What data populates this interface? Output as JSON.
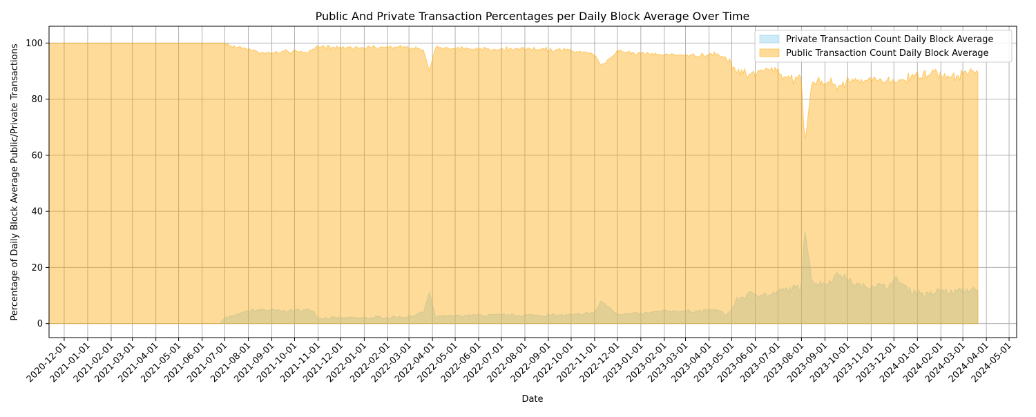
{
  "chart_data": {
    "type": "area",
    "title": "Public And Private Transaction Percentages per Daily Block Average Over Time",
    "xlabel": "Date",
    "ylabel": "Percentage of Daily Block Average Public/Private Transactions",
    "x_ticks": [
      "2020-12-01",
      "2021-01-01",
      "2021-02-01",
      "2021-03-01",
      "2021-04-01",
      "2021-05-01",
      "2021-06-01",
      "2021-07-01",
      "2021-08-01",
      "2021-09-01",
      "2021-10-01",
      "2021-11-01",
      "2021-12-01",
      "2022-01-01",
      "2022-02-01",
      "2022-03-01",
      "2022-04-01",
      "2022-05-01",
      "2022-06-01",
      "2022-07-01",
      "2022-08-01",
      "2022-09-01",
      "2022-10-01",
      "2022-11-01",
      "2022-12-01",
      "2023-01-01",
      "2023-02-01",
      "2023-03-01",
      "2023-04-01",
      "2023-05-01",
      "2023-06-01",
      "2023-07-01",
      "2023-08-01",
      "2023-09-01",
      "2023-10-01",
      "2023-11-01",
      "2023-12-01",
      "2024-01-01",
      "2024-02-01",
      "2024-03-01",
      "2024-04-01",
      "2024-05-01"
    ],
    "y_ticks": [
      0,
      20,
      40,
      60,
      80,
      100
    ],
    "ylim": [
      -5,
      106
    ],
    "xlim": [
      "2020-11-11",
      "2024-05-11"
    ],
    "grid": true,
    "legend_position": "top-right",
    "colors": {
      "private": "#87ceeb",
      "public": "#ffa500"
    },
    "x": [
      "2020-11-11",
      "2021-03-01",
      "2021-06-25",
      "2021-06-29",
      "2021-07-10",
      "2021-08-01",
      "2021-08-20",
      "2021-09-15",
      "2021-10-25",
      "2021-11-01",
      "2022-01-01",
      "2022-03-01",
      "2022-03-20",
      "2022-03-28",
      "2022-04-05",
      "2022-06-01",
      "2022-08-01",
      "2022-10-01",
      "2022-11-01",
      "2022-11-10",
      "2022-12-01",
      "2023-01-01",
      "2023-02-01",
      "2023-03-01",
      "2023-03-20",
      "2023-04-10",
      "2023-04-25",
      "2023-05-10",
      "2023-06-01",
      "2023-06-20",
      "2023-07-10",
      "2023-08-01",
      "2023-08-05",
      "2023-08-15",
      "2023-09-01",
      "2023-09-20",
      "2023-10-10",
      "2023-10-25",
      "2023-11-05",
      "2023-11-20",
      "2023-12-05",
      "2023-12-20",
      "2024-01-05",
      "2024-01-15",
      "2024-02-01",
      "2024-02-15",
      "2024-03-01",
      "2024-03-15",
      "2024-03-22"
    ],
    "series": [
      {
        "name": "Private Transaction Count Daily Block Average",
        "values": [
          0,
          0,
          0,
          2,
          2.5,
          4.5,
          5,
          4.5,
          5,
          2,
          2,
          2.5,
          4,
          11,
          2.5,
          3,
          3,
          3,
          4,
          8,
          3.5,
          3.5,
          4.5,
          4.5,
          4.5,
          5,
          3,
          9,
          11,
          10,
          12,
          13,
          35,
          15,
          14,
          18,
          14,
          13,
          14,
          13,
          16,
          12,
          11,
          10,
          12,
          11,
          12,
          12,
          11
        ]
      },
      {
        "name": "Public Transaction Count Daily Block Average",
        "values": [
          100,
          100,
          100,
          100,
          99,
          98,
          96.5,
          97,
          97,
          98.5,
          98.5,
          98.5,
          97.5,
          90,
          98.5,
          98,
          98,
          97.5,
          96,
          92,
          97,
          96.5,
          96,
          95.5,
          95.5,
          96.5,
          94,
          90,
          89,
          91,
          88,
          87,
          64,
          86,
          86,
          85,
          87,
          86,
          87,
          87,
          86,
          88,
          88,
          90,
          89,
          88,
          89,
          90,
          90
        ]
      }
    ]
  }
}
